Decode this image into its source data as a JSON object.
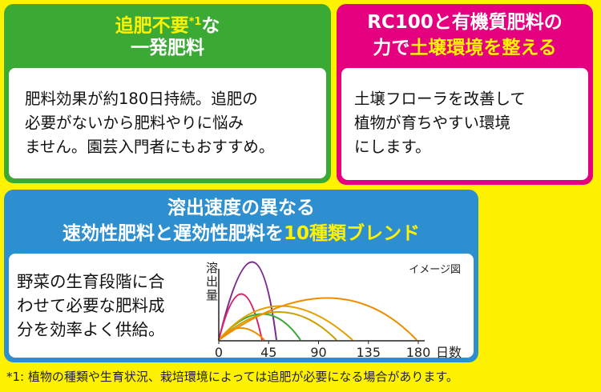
{
  "panel1": {
    "title_line1": [
      "追肥不要",
      "*1",
      "な"
    ],
    "title_line2": "一発肥料",
    "body": [
      "肥料効果が約180日持続。追肥の",
      "必要がないから肥料やりに悩み",
      "ません。園芸入門者にもおすすめ。"
    ]
  },
  "panel2": {
    "title_line1": "RC100と有機質肥料の",
    "title_line2": [
      "力で",
      "土壌環境を整える"
    ],
    "body": [
      "土壌フローラを改善して",
      "植物が育ちやすい環境",
      "にします。"
    ]
  },
  "panel3": {
    "title_line1": "溶出速度の異なる",
    "title_line2": [
      "速効性肥料と遅効性肥料を",
      "10種類ブレンド"
    ],
    "body": [
      "野菜の生育段階に合",
      "わせて必要な肥料成",
      "分を効率よく供給。"
    ],
    "chart": {
      "note": "イメージ図",
      "y_label": "溶出量",
      "x_label": "日数",
      "xticks": [
        0,
        45,
        90,
        135,
        180
      ]
    }
  },
  "footnote": "*1: 植物の種類や生育状況、栽培環境によっては追肥が必要になる場合があります。"
}
